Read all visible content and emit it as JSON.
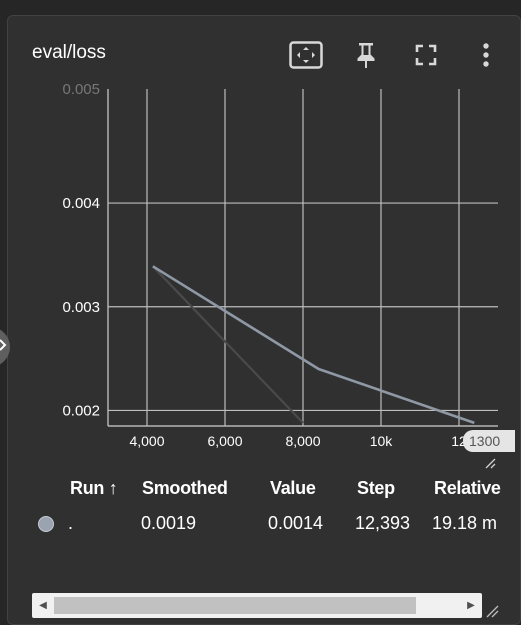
{
  "card": {
    "title": "eval/loss",
    "toolbar": {
      "fit_icon": "fit-domain-icon",
      "pin_icon": "pin-icon",
      "fullscreen_icon": "fullscreen-icon",
      "more_icon": "more-vert-icon"
    }
  },
  "chart_data": {
    "type": "line",
    "y_ticks": [
      "0.002",
      "0.003",
      "0.004"
    ],
    "x_ticks": [
      "4,000",
      "6,000",
      "8,000",
      "10k",
      "12"
    ],
    "xlim": [
      3000,
      13000
    ],
    "ylim": [
      0.00185,
      0.0051
    ],
    "grid": true,
    "series": [
      {
        "role": "smoothed",
        "color": "#8f98a5",
        "x": [
          4150,
          8400,
          12393
        ],
        "y": [
          0.00339,
          0.0024,
          0.00188
        ]
      },
      {
        "role": "raw",
        "color": "#4a4a4a",
        "x": [
          4150,
          8000
        ],
        "y": [
          0.00339,
          0.00188
        ]
      }
    ],
    "hover_step_label": "1300"
  },
  "table": {
    "headers": {
      "run": "Run ↑",
      "smoothed": "Smoothed",
      "value": "Value",
      "step": "Step",
      "relative": "Relative"
    },
    "rows": [
      {
        "run": ".",
        "color": "#9aa3b0",
        "smoothed": "0.0019",
        "value": "0.0014",
        "step": "12,393",
        "relative": "19.18 m"
      }
    ]
  }
}
